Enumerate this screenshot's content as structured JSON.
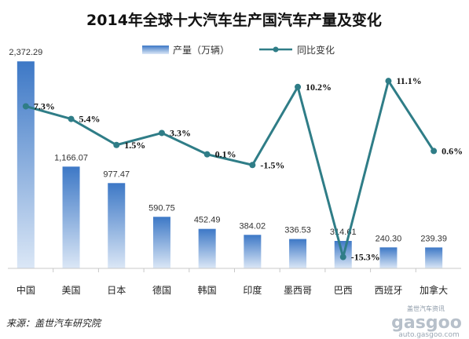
{
  "chart_data": {
    "type": "bar",
    "title": "2014年全球十大汽车生产国汽车产量及变化",
    "categories": [
      "中国",
      "美国",
      "日本",
      "德国",
      "韩国",
      "印度",
      "墨西哥",
      "巴西",
      "西班牙",
      "加拿大"
    ],
    "series": [
      {
        "name": "产量（万辆）",
        "kind": "bar",
        "axis": "left",
        "values": [
          2372.29,
          1166.07,
          977.47,
          590.75,
          452.49,
          384.02,
          336.53,
          314.61,
          240.3,
          239.39
        ],
        "labels": [
          "2,372.29",
          "1,166.07",
          "977.47",
          "590.75",
          "452.49",
          "384.02",
          "336.53",
          "314.61",
          "240.30",
          "239.39"
        ],
        "color": "#4f86cc"
      },
      {
        "name": "同比变化",
        "kind": "line",
        "axis": "right",
        "values": [
          7.3,
          5.4,
          1.5,
          3.3,
          0.1,
          -1.5,
          10.2,
          -15.3,
          11.1,
          0.6
        ],
        "labels": [
          "7.3%",
          "5.4%",
          "1.5%",
          "3.3%",
          "0.1%",
          "-1.5%",
          "10.2%",
          "-15.3%",
          "11.1%",
          "0.6%"
        ],
        "color": "#2f7d87"
      }
    ],
    "ylim_left": [
      0,
      2500
    ],
    "ylim_right": [
      -17,
      15
    ],
    "grid": false,
    "legend_position": "top-center"
  },
  "source": "来源：盖世汽车研究院",
  "watermark": {
    "line1": "盖世汽车资讯",
    "line2": "gasgoo",
    "line3": "auto.gasgoo.com"
  }
}
